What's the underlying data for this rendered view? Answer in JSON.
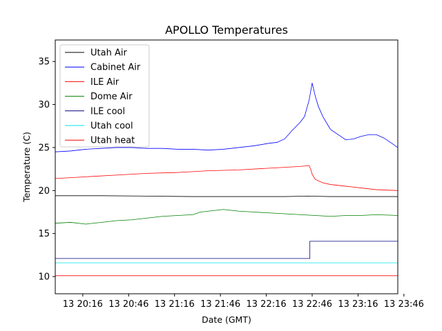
{
  "chart_data": {
    "type": "line",
    "title": "APOLLO Temperatures",
    "xlabel": "Date (GMT)",
    "ylabel": "Temperature (C)",
    "xlim": [
      0,
      224
    ],
    "ylim": [
      8,
      37.5
    ],
    "grid": false,
    "legend_position": "top-left",
    "x_unit": "minutes after 13 20:16 GMT minus 18",
    "xticks": [
      {
        "value": 18,
        "label": "13 20:16"
      },
      {
        "value": 48,
        "label": "13 20:46"
      },
      {
        "value": 78,
        "label": "13 21:16"
      },
      {
        "value": 108,
        "label": "13 21:46"
      },
      {
        "value": 138,
        "label": "13 22:16"
      },
      {
        "value": 168,
        "label": "13 22:46"
      },
      {
        "value": 198,
        "label": "13 23:16"
      },
      {
        "value": 228,
        "label": "13 23:46"
      }
    ],
    "yticks": [
      {
        "value": 10,
        "label": "10"
      },
      {
        "value": 15,
        "label": "15"
      },
      {
        "value": 20,
        "label": "20"
      },
      {
        "value": 25,
        "label": "25"
      },
      {
        "value": 30,
        "label": "30"
      },
      {
        "value": 35,
        "label": "35"
      }
    ],
    "series": [
      {
        "name": "Utah Air",
        "color": "#000000",
        "x": [
          0,
          30,
          60,
          90,
          120,
          150,
          165,
          180,
          200,
          224
        ],
        "y": [
          19.4,
          19.4,
          19.35,
          19.3,
          19.3,
          19.3,
          19.35,
          19.3,
          19.3,
          19.3
        ]
      },
      {
        "name": "Cabinet Air",
        "color": "#0000ff",
        "x": [
          0,
          10,
          20,
          30,
          40,
          50,
          60,
          70,
          80,
          90,
          100,
          110,
          120,
          130,
          140,
          145,
          150,
          155,
          160,
          163,
          166,
          168,
          170,
          172,
          175,
          178,
          180,
          185,
          190,
          195,
          200,
          205,
          210,
          215,
          220,
          224
        ],
        "y": [
          24.5,
          24.6,
          24.8,
          24.9,
          25.0,
          25.0,
          24.9,
          24.9,
          24.8,
          24.8,
          24.7,
          24.8,
          25.0,
          25.2,
          25.5,
          25.6,
          26.0,
          27.0,
          27.9,
          28.6,
          30.5,
          32.5,
          31.0,
          29.8,
          28.6,
          27.7,
          27.1,
          26.5,
          25.9,
          26.0,
          26.3,
          26.5,
          26.5,
          26.1,
          25.5,
          25.0
        ]
      },
      {
        "name": "ILE Air",
        "color": "#ff0000",
        "x": [
          0,
          20,
          40,
          60,
          80,
          100,
          120,
          140,
          160,
          166,
          167,
          168,
          170,
          175,
          180,
          190,
          200,
          210,
          224
        ],
        "y": [
          21.4,
          21.6,
          21.8,
          22.0,
          22.1,
          22.3,
          22.4,
          22.6,
          22.8,
          22.9,
          22.5,
          21.9,
          21.3,
          20.9,
          20.7,
          20.5,
          20.3,
          20.1,
          20.0
        ]
      },
      {
        "name": "Dome Air",
        "color": "#008000",
        "x": [
          0,
          10,
          20,
          30,
          40,
          50,
          60,
          70,
          80,
          90,
          95,
          100,
          110,
          115,
          120,
          130,
          140,
          150,
          160,
          170,
          180,
          190,
          200,
          210,
          224
        ],
        "y": [
          16.2,
          16.3,
          16.1,
          16.3,
          16.5,
          16.6,
          16.8,
          17.0,
          17.1,
          17.2,
          17.5,
          17.6,
          17.8,
          17.7,
          17.6,
          17.5,
          17.4,
          17.3,
          17.2,
          17.1,
          17.0,
          17.1,
          17.1,
          17.2,
          17.1
        ]
      },
      {
        "name": "ILE cool",
        "color": "#000080",
        "x": [
          0,
          166.5,
          166.5,
          224
        ],
        "y": [
          12.1,
          12.1,
          14.1,
          14.1
        ]
      },
      {
        "name": "Utah cool",
        "color": "#00e5ee",
        "x": [
          0,
          224
        ],
        "y": [
          11.6,
          11.6
        ]
      },
      {
        "name": "Utah heat",
        "color": "#ff0000",
        "x": [
          0,
          224
        ],
        "y": [
          10.1,
          10.1
        ]
      }
    ]
  }
}
